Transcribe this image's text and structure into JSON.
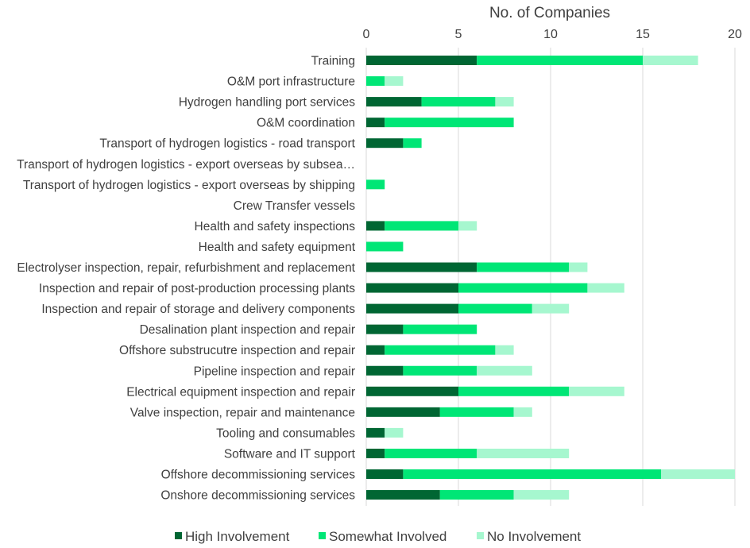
{
  "chart_data": {
    "type": "bar",
    "orientation": "horizontal",
    "stacked": true,
    "xlabel": "No. of Companies",
    "xlim": [
      0,
      20
    ],
    "xticks": [
      0,
      5,
      10,
      15,
      20
    ],
    "x_axis_position": "top",
    "grid": true,
    "legend_position": "bottom",
    "categories": [
      "Training",
      "O&M port infrastructure",
      "Hydrogen handling port services",
      "O&M coordination",
      "Transport of hydrogen logistics - road transport",
      "Transport of hydrogen logistics - export overseas by subsea…",
      "Transport of hydrogen logistics - export overseas by shipping",
      "Crew Transfer vessels",
      "Health and safety inspections",
      "Health and safety equipment",
      "Electrolyser inspection, repair, refurbishment and replacement",
      "Inspection and repair of post-production processing plants",
      "Inspection and repair of storage and delivery components",
      "Desalination plant inspection and repair",
      "Offshore substrucutre inspection and repair",
      "Pipeline inspection and repair",
      "Electrical equipment inspection and repair",
      "Valve inspection, repair and maintenance",
      "Tooling and consumables",
      "Software and IT support",
      "Offshore decommissioning services",
      "Onshore decommissioning services"
    ],
    "series": [
      {
        "name": "High Involvement",
        "color": "#006633",
        "values": [
          6,
          0,
          3,
          1,
          2,
          0,
          0,
          0,
          1,
          0,
          6,
          5,
          5,
          2,
          1,
          2,
          5,
          4,
          1,
          1,
          2,
          4
        ]
      },
      {
        "name": "Somewhat Involved",
        "color": "#00e676",
        "values": [
          9,
          1,
          4,
          7,
          1,
          0,
          1,
          0,
          4,
          2,
          5,
          7,
          4,
          4,
          6,
          4,
          6,
          4,
          0,
          5,
          14,
          4
        ]
      },
      {
        "name": "No Involvement",
        "color": "#a6f7cf",
        "values": [
          3,
          1,
          1,
          0,
          0,
          0,
          0,
          0,
          1,
          0,
          1,
          2,
          2,
          0,
          1,
          3,
          3,
          1,
          1,
          5,
          4,
          3
        ]
      }
    ]
  }
}
